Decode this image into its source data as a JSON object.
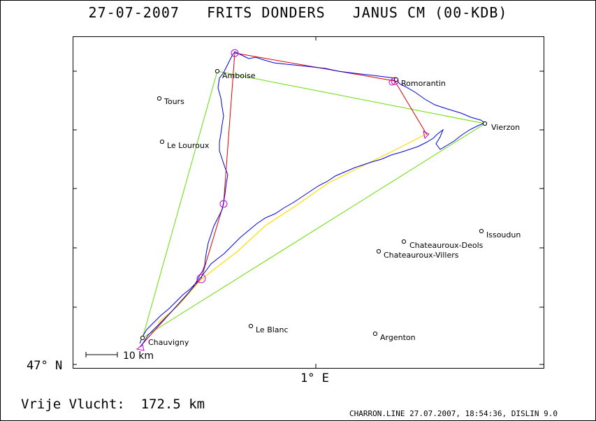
{
  "header": {
    "date": "27-07-2007",
    "pilot": "FRITS DONDERS",
    "glider": "JANUS CM (00-KDB)"
  },
  "axes": {
    "lat_label": "47° N",
    "lon_label": "1° E"
  },
  "footer": {
    "flight_label": "Vrije Vlucht:",
    "flight_value": "172.5 km",
    "file_info": "CHARRON.LINE 27.07.2007, 18:54:36, DISLIN 9.0"
  },
  "scale_bar": {
    "label": "10 km"
  },
  "towns": [
    {
      "name": "Amboise"
    },
    {
      "name": "Tours"
    },
    {
      "name": "Le Louroux"
    },
    {
      "name": "Romorantin"
    },
    {
      "name": "Vierzon"
    },
    {
      "name": "Issoudun"
    },
    {
      "name": "Chateauroux-Deols"
    },
    {
      "name": "Chateauroux-Villers"
    },
    {
      "name": "Le Blanc"
    },
    {
      "name": "Argenton"
    },
    {
      "name": "Chauvigny"
    }
  ],
  "colors": {
    "track": "#0000dd",
    "task": "#dd0000",
    "triangle": "#66dd00",
    "final_glide": "#ffdd00",
    "turnpoint": "#cc00cc"
  }
}
